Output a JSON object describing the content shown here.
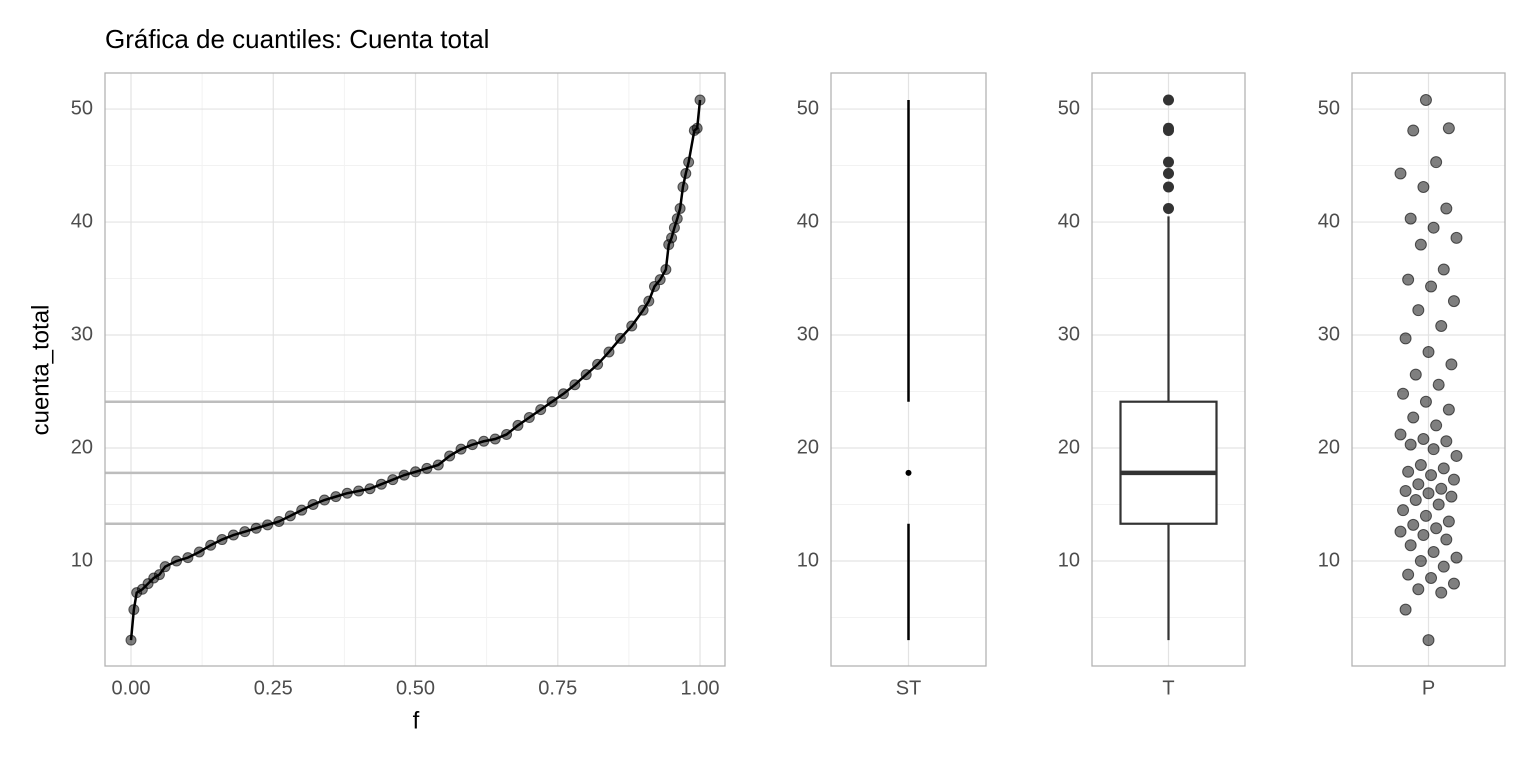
{
  "title": "Gráfica de cuantiles: Cuenta total",
  "chart_data": [
    {
      "type": "line",
      "xlabel": "f",
      "ylabel": "cuenta_total",
      "color": "#000000",
      "x": [
        0,
        0.005,
        0.01,
        0.02,
        0.03,
        0.04,
        0.05,
        0.06,
        0.08,
        0.1,
        0.12,
        0.14,
        0.16,
        0.18,
        0.2,
        0.22,
        0.24,
        0.26,
        0.28,
        0.3,
        0.32,
        0.34,
        0.36,
        0.38,
        0.4,
        0.42,
        0.44,
        0.46,
        0.48,
        0.5,
        0.52,
        0.54,
        0.56,
        0.58,
        0.6,
        0.62,
        0.64,
        0.66,
        0.68,
        0.7,
        0.72,
        0.74,
        0.76,
        0.78,
        0.8,
        0.82,
        0.84,
        0.86,
        0.88,
        0.9,
        0.91,
        0.92,
        0.93,
        0.94,
        0.945,
        0.95,
        0.955,
        0.96,
        0.965,
        0.97,
        0.975,
        0.98,
        0.99,
        0.995,
        1.0
      ],
      "y": [
        3.0,
        5.7,
        7.2,
        7.5,
        8.0,
        8.5,
        8.8,
        9.5,
        10.0,
        10.3,
        10.8,
        11.4,
        11.9,
        12.3,
        12.6,
        12.9,
        13.2,
        13.5,
        14.0,
        14.5,
        15.0,
        15.4,
        15.7,
        16.0,
        16.2,
        16.4,
        16.8,
        17.2,
        17.6,
        17.9,
        18.2,
        18.5,
        19.3,
        19.9,
        20.3,
        20.6,
        20.8,
        21.2,
        22.0,
        22.7,
        23.4,
        24.1,
        24.8,
        25.6,
        26.5,
        27.4,
        28.5,
        29.7,
        30.8,
        32.2,
        33.0,
        34.3,
        34.9,
        35.8,
        38.0,
        38.6,
        39.5,
        40.3,
        41.2,
        43.1,
        44.3,
        45.3,
        48.1,
        48.3,
        50.8
      ],
      "hlines": [
        13.3,
        17.8,
        24.1
      ],
      "xlim": [
        -0.0457,
        1.0439
      ],
      "ylim": [
        0.71,
        53.19
      ],
      "xticks": [
        {
          "value": 0,
          "label": "0.00"
        },
        0.25,
        {
          "value": 0.5,
          "label": "0.50"
        },
        0.75,
        {
          "value": 1,
          "label": "1.00"
        }
      ],
      "xminor": [
        0.125,
        0.375,
        0.625,
        0.875
      ],
      "yticks": [
        10,
        20,
        30,
        40,
        50
      ],
      "yminor": [
        5,
        15,
        25,
        35,
        45
      ],
      "grid": true
    },
    {
      "type": "range",
      "category": "ST",
      "low": [
        3.0,
        13.3
      ],
      "mid": 17.8,
      "high": [
        24.1,
        50.8
      ],
      "ylim": [
        0.71,
        53.19
      ],
      "yticks": [
        10,
        20,
        30,
        40,
        50
      ],
      "yminor": [
        5,
        15,
        25,
        35,
        45
      ],
      "grid": true
    },
    {
      "type": "box",
      "category": "T",
      "whisker_low": 3.0,
      "q1": 13.3,
      "median": 17.8,
      "q3": 24.1,
      "whisker_high": 40.5,
      "outliers": [
        41.2,
        43.1,
        44.3,
        45.3,
        48.1,
        48.3,
        50.8
      ],
      "ylim": [
        0.71,
        53.19
      ],
      "yticks": [
        10,
        20,
        30,
        40,
        50
      ],
      "yminor": [
        5,
        15,
        25,
        35,
        45
      ],
      "grid": true
    },
    {
      "type": "strip",
      "category": "P",
      "values": [
        3.0,
        5.7,
        7.2,
        7.5,
        8.0,
        8.5,
        8.8,
        9.5,
        10.0,
        10.3,
        10.8,
        11.4,
        11.9,
        12.3,
        12.6,
        12.9,
        13.2,
        13.5,
        14.0,
        14.5,
        15.0,
        15.4,
        15.7,
        16.0,
        16.2,
        16.4,
        16.8,
        17.2,
        17.6,
        17.9,
        18.2,
        18.5,
        19.3,
        19.9,
        20.3,
        20.6,
        20.8,
        21.2,
        22.0,
        22.7,
        23.4,
        24.1,
        24.8,
        25.6,
        26.5,
        27.4,
        28.5,
        29.7,
        30.8,
        32.2,
        33.0,
        34.3,
        34.9,
        35.8,
        38.0,
        38.6,
        39.5,
        40.3,
        41.2,
        43.1,
        44.3,
        45.3,
        48.1,
        48.3,
        50.8
      ],
      "ylim": [
        0.71,
        53.19
      ],
      "yticks": [
        10,
        20,
        30,
        40,
        50
      ],
      "yminor": [
        5,
        15,
        25,
        35,
        45
      ],
      "grid": true
    }
  ]
}
